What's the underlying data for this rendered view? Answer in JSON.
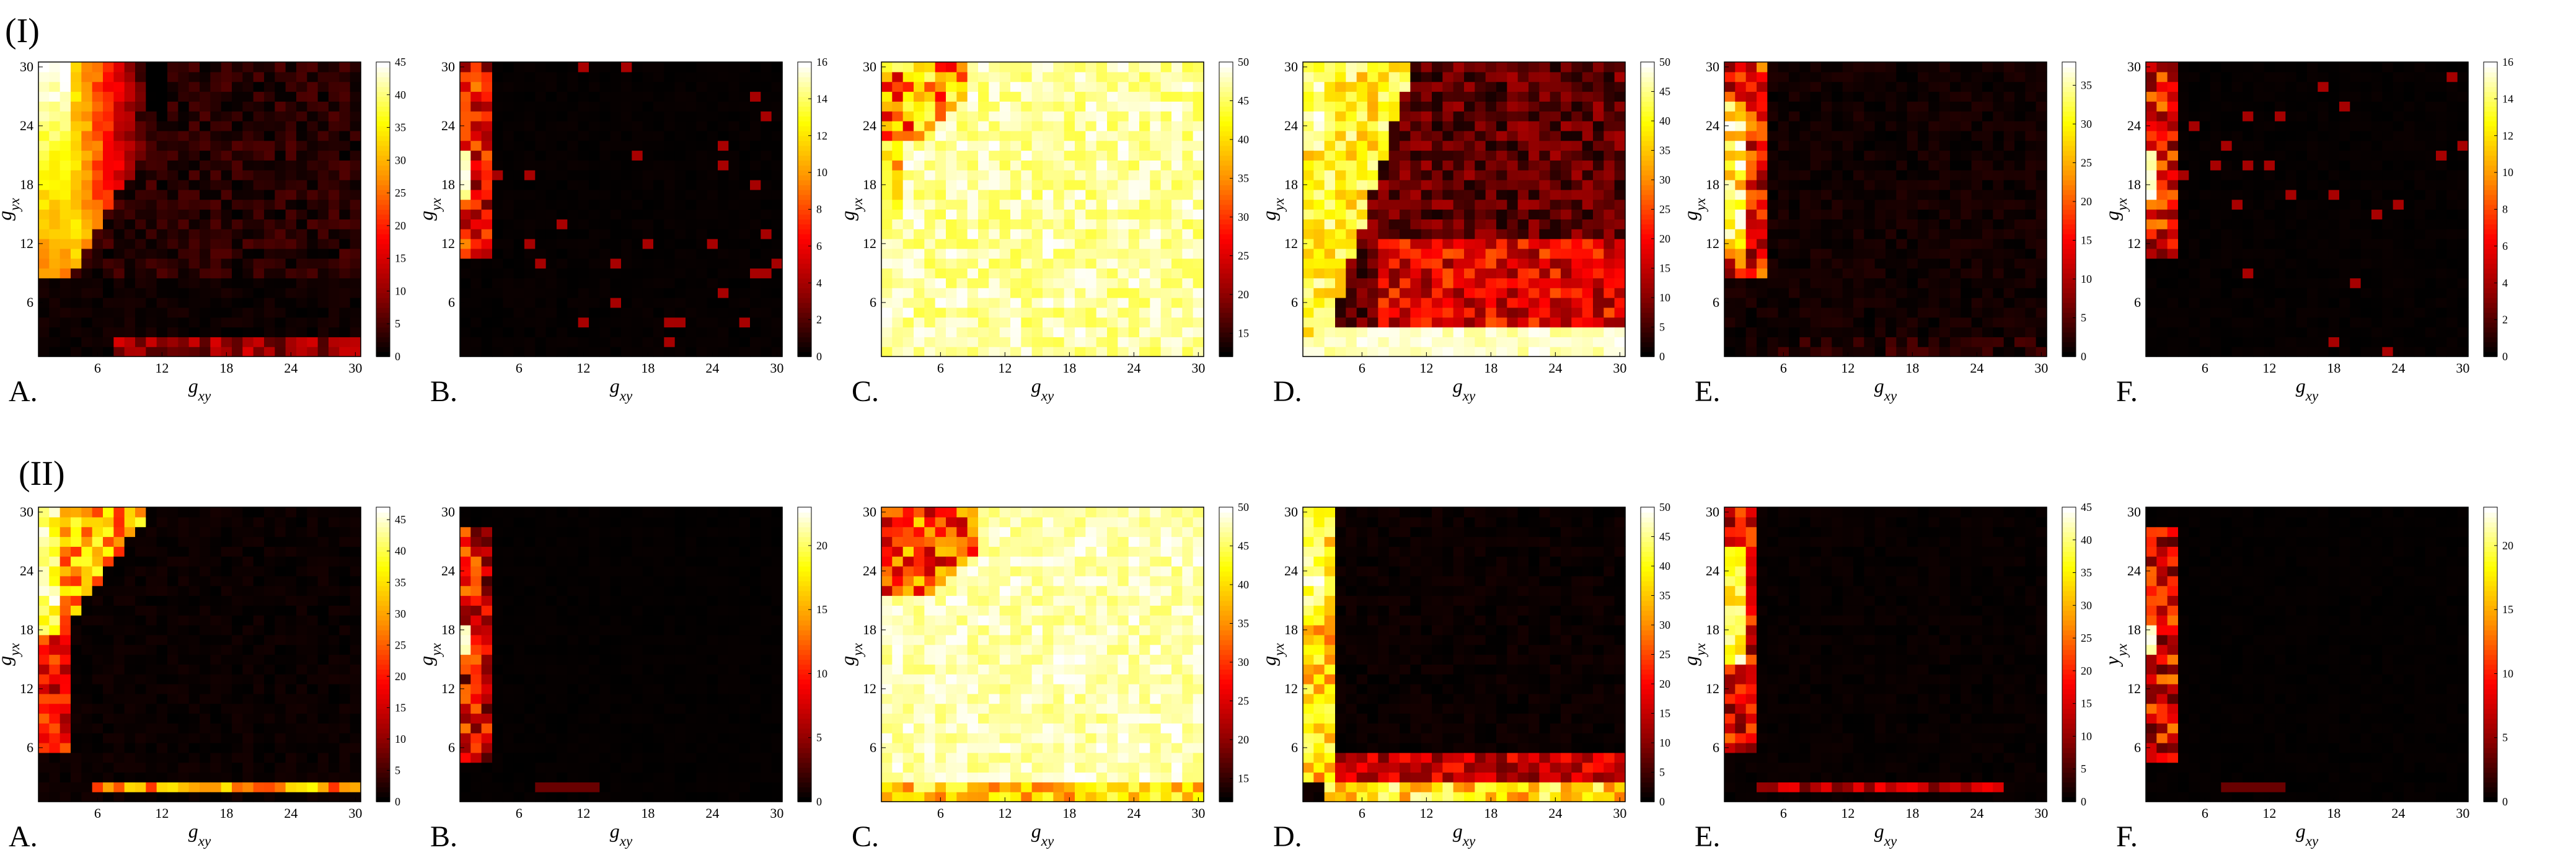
{
  "figure": {
    "row_labels": [
      "(I)",
      "(II)"
    ]
  },
  "colormap": {
    "name": "hot",
    "stops": [
      "#000000",
      "#8b0000",
      "#ff0000",
      "#ff8c00",
      "#ffff00",
      "#ffffff"
    ]
  },
  "chart_data": [
    {
      "type": "heatmap",
      "row": "(I)",
      "panel": "A.",
      "pattern": "A1",
      "xlabel": "g_xy",
      "ylabel": "g_yx",
      "x_ticks": [
        "6",
        "12",
        "18",
        "24",
        "30"
      ],
      "y_ticks": [
        "6",
        "12",
        "18",
        "24",
        "30"
      ],
      "x_range": [
        1,
        30
      ],
      "y_range": [
        1,
        30
      ],
      "colorbar_ticks": [
        "0",
        "5",
        "10",
        "15",
        "20",
        "25",
        "30",
        "35",
        "40",
        "45"
      ],
      "clim": [
        0,
        45
      ]
    },
    {
      "type": "heatmap",
      "row": "(I)",
      "panel": "B.",
      "pattern": "B",
      "xlabel": "g_xy",
      "ylabel": "g_yx",
      "x_ticks": [
        "6",
        "12",
        "18",
        "24",
        "30"
      ],
      "y_ticks": [
        "6",
        "12",
        "18",
        "24",
        "30"
      ],
      "x_range": [
        1,
        30
      ],
      "y_range": [
        1,
        30
      ],
      "colorbar_ticks": [
        "0",
        "2",
        "4",
        "6",
        "8",
        "10",
        "12",
        "14",
        "16"
      ],
      "clim": [
        0,
        16
      ]
    },
    {
      "type": "heatmap",
      "row": "(I)",
      "panel": "C.",
      "pattern": "C1",
      "xlabel": "g_xy",
      "ylabel": "g_yx",
      "x_ticks": [
        "6",
        "12",
        "18",
        "24",
        "30"
      ],
      "y_ticks": [
        "6",
        "12",
        "18",
        "24",
        "30"
      ],
      "x_range": [
        1,
        30
      ],
      "y_range": [
        1,
        30
      ],
      "colorbar_ticks": [
        "15",
        "20",
        "25",
        "30",
        "35",
        "40",
        "45",
        "50"
      ],
      "clim": [
        12,
        50
      ]
    },
    {
      "type": "heatmap",
      "row": "(I)",
      "panel": "D.",
      "pattern": "D1",
      "xlabel": "g_xy",
      "ylabel": "g_yx",
      "x_ticks": [
        "6",
        "12",
        "18",
        "24",
        "30"
      ],
      "y_ticks": [
        "6",
        "12",
        "18",
        "24",
        "30"
      ],
      "x_range": [
        1,
        30
      ],
      "y_range": [
        1,
        30
      ],
      "colorbar_ticks": [
        "0",
        "5",
        "10",
        "15",
        "20",
        "25",
        "30",
        "35",
        "40",
        "45",
        "50"
      ],
      "clim": [
        0,
        50
      ]
    },
    {
      "type": "heatmap",
      "row": "(I)",
      "panel": "E.",
      "pattern": "E1",
      "xlabel": "g_xy",
      "ylabel": "g_yx",
      "x_ticks": [
        "6",
        "12",
        "18",
        "24",
        "30"
      ],
      "y_ticks": [
        "6",
        "12",
        "18",
        "24",
        "30"
      ],
      "x_range": [
        1,
        30
      ],
      "y_range": [
        1,
        30
      ],
      "colorbar_ticks": [
        "0",
        "5",
        "10",
        "15",
        "20",
        "25",
        "30",
        "35"
      ],
      "clim": [
        0,
        38
      ]
    },
    {
      "type": "heatmap",
      "row": "(I)",
      "panel": "F.",
      "pattern": "B",
      "xlabel": "g_xy",
      "ylabel": "g_yx",
      "x_ticks": [
        "6",
        "12",
        "18",
        "24",
        "30"
      ],
      "y_ticks": [
        "6",
        "12",
        "18",
        "24",
        "30"
      ],
      "x_range": [
        1,
        30
      ],
      "y_range": [
        1,
        30
      ],
      "colorbar_ticks": [
        "0",
        "2",
        "4",
        "6",
        "8",
        "10",
        "12",
        "14",
        "16"
      ],
      "clim": [
        0,
        16
      ]
    },
    {
      "type": "heatmap",
      "row": "(II)",
      "panel": "A.",
      "pattern": "A2",
      "xlabel": "g_xy",
      "ylabel": "g_yx",
      "x_ticks": [
        "6",
        "12",
        "18",
        "24",
        "30"
      ],
      "y_ticks": [
        "6",
        "12",
        "18",
        "24",
        "30"
      ],
      "x_range": [
        1,
        30
      ],
      "y_range": [
        1,
        30
      ],
      "colorbar_ticks": [
        "0",
        "5",
        "10",
        "15",
        "20",
        "25",
        "30",
        "35",
        "40",
        "45"
      ],
      "clim": [
        0,
        47
      ]
    },
    {
      "type": "heatmap",
      "row": "(II)",
      "panel": "B.",
      "pattern": "B2",
      "xlabel": "g_xy",
      "ylabel": "g_yx",
      "x_ticks": [
        "6",
        "12",
        "18",
        "24",
        "30"
      ],
      "y_ticks": [
        "6",
        "12",
        "18",
        "24",
        "30"
      ],
      "x_range": [
        1,
        30
      ],
      "y_range": [
        1,
        30
      ],
      "colorbar_ticks": [
        "0",
        "5",
        "10",
        "15",
        "20"
      ],
      "clim": [
        0,
        23
      ]
    },
    {
      "type": "heatmap",
      "row": "(II)",
      "panel": "C.",
      "pattern": "C2",
      "xlabel": "g_xy",
      "ylabel": "g_yx",
      "x_ticks": [
        "6",
        "12",
        "18",
        "24",
        "30"
      ],
      "y_ticks": [
        "6",
        "12",
        "18",
        "24",
        "30"
      ],
      "x_range": [
        1,
        30
      ],
      "y_range": [
        1,
        30
      ],
      "colorbar_ticks": [
        "15",
        "20",
        "25",
        "30",
        "35",
        "40",
        "45",
        "50"
      ],
      "clim": [
        12,
        50
      ]
    },
    {
      "type": "heatmap",
      "row": "(II)",
      "panel": "D.",
      "pattern": "D2",
      "xlabel": "g_xy",
      "ylabel": "g_yx",
      "x_ticks": [
        "6",
        "12",
        "18",
        "24",
        "30"
      ],
      "y_ticks": [
        "6",
        "12",
        "18",
        "24",
        "30"
      ],
      "x_range": [
        1,
        30
      ],
      "y_range": [
        1,
        30
      ],
      "colorbar_ticks": [
        "0",
        "5",
        "10",
        "15",
        "20",
        "25",
        "30",
        "35",
        "40",
        "45",
        "50"
      ],
      "clim": [
        0,
        50
      ]
    },
    {
      "type": "heatmap",
      "row": "(II)",
      "panel": "E.",
      "pattern": "E2",
      "xlabel": "g_xy",
      "ylabel": "g_yx",
      "x_ticks": [
        "6",
        "12",
        "18",
        "24",
        "30"
      ],
      "y_ticks": [
        "6",
        "12",
        "18",
        "24",
        "30"
      ],
      "x_range": [
        1,
        30
      ],
      "y_range": [
        1,
        30
      ],
      "colorbar_ticks": [
        "0",
        "5",
        "10",
        "15",
        "20",
        "25",
        "30",
        "35",
        "40",
        "45"
      ],
      "clim": [
        0,
        45
      ]
    },
    {
      "type": "heatmap",
      "row": "(II)",
      "panel": "F.",
      "pattern": "B2",
      "xlabel": "g_xy",
      "ylabel": "y_yx",
      "x_ticks": [
        "6",
        "12",
        "18",
        "24",
        "30"
      ],
      "y_ticks": [
        "6",
        "12",
        "18",
        "24",
        "30"
      ],
      "x_range": [
        1,
        30
      ],
      "y_range": [
        1,
        30
      ],
      "colorbar_ticks": [
        "0",
        "5",
        "10",
        "15",
        "20"
      ],
      "clim": [
        0,
        23
      ]
    }
  ]
}
